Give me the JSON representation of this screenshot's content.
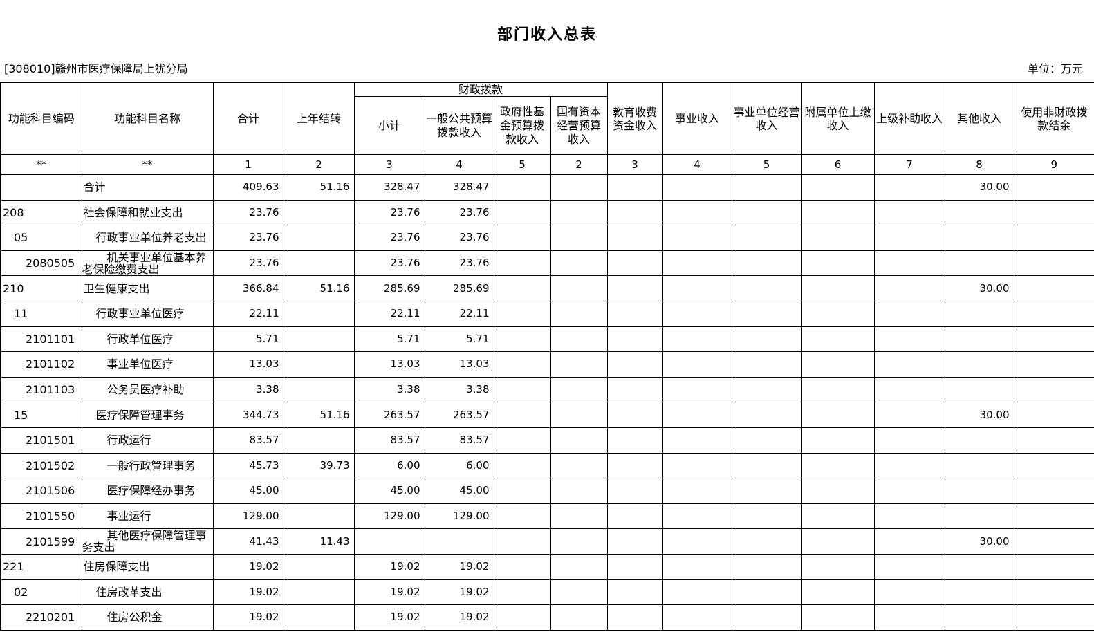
{
  "title": "部门收入总表",
  "org": "[308010]赣州市医疗保障局上犹分局",
  "unit": "单位：万元",
  "table": {
    "header": {
      "code": {
        "label": "功能科目编码",
        "num": "**"
      },
      "name": {
        "label": "功能科目名称",
        "num": "**"
      },
      "total": {
        "label": "合计",
        "num": "1"
      },
      "carryover": {
        "label": "上年结转",
        "num": "2"
      },
      "fiscal_group": "财政拨款",
      "subtotal": {
        "label": "小计",
        "num": "3"
      },
      "general": {
        "label": "一般公共预算\n拨款收入",
        "num": "4"
      },
      "govfund": {
        "label": "政府性基\n金预算拨\n款收入",
        "num": "5"
      },
      "statecap": {
        "label": "国有资本\n经营预算\n收入",
        "num": "2"
      },
      "edufee": {
        "label": "教育收费\n资金收入",
        "num": "3"
      },
      "business": {
        "label": "事业收入",
        "num": "4"
      },
      "bizop": {
        "label": "事业单位经营\n收入",
        "num": "5"
      },
      "affiliate": {
        "label": "附属单位上缴\n收入",
        "num": "6"
      },
      "superior": {
        "label": "上级补助收入",
        "num": "7"
      },
      "other": {
        "label": "其他收入",
        "num": "8"
      },
      "nonfiscal": {
        "label": "使用非财政拨\n款结余",
        "num": "9"
      }
    },
    "value_keys": [
      "total",
      "carryover",
      "subtotal",
      "general",
      "govfund",
      "statecap",
      "edufee",
      "business",
      "bizop",
      "affiliate",
      "superior",
      "other",
      "nonfiscal"
    ],
    "rows": [
      {
        "code": "",
        "code_level": 1,
        "name": "合计",
        "name_level": 1,
        "values": {
          "total": "409.63",
          "carryover": "51.16",
          "subtotal": "328.47",
          "general": "328.47",
          "other": "30.00"
        }
      },
      {
        "code": "208",
        "code_level": 1,
        "name": "社会保障和就业支出",
        "name_level": 1,
        "values": {
          "total": "23.76",
          "subtotal": "23.76",
          "general": "23.76"
        }
      },
      {
        "code": "05",
        "code_level": 2,
        "name": "行政事业单位养老支出",
        "name_level": 2,
        "values": {
          "total": "23.76",
          "subtotal": "23.76",
          "general": "23.76"
        }
      },
      {
        "code": "2080505",
        "code_level": 3,
        "name": "机关事业单位基本养老保险缴费支出",
        "name_level": 3,
        "values": {
          "total": "23.76",
          "subtotal": "23.76",
          "general": "23.76"
        }
      },
      {
        "code": "210",
        "code_level": 1,
        "name": "卫生健康支出",
        "name_level": 1,
        "values": {
          "total": "366.84",
          "carryover": "51.16",
          "subtotal": "285.69",
          "general": "285.69",
          "other": "30.00"
        }
      },
      {
        "code": "11",
        "code_level": 2,
        "name": "行政事业单位医疗",
        "name_level": 2,
        "values": {
          "total": "22.11",
          "subtotal": "22.11",
          "general": "22.11"
        }
      },
      {
        "code": "2101101",
        "code_level": 3,
        "name": "行政单位医疗",
        "name_level": 3,
        "values": {
          "total": "5.71",
          "subtotal": "5.71",
          "general": "5.71"
        }
      },
      {
        "code": "2101102",
        "code_level": 3,
        "name": "事业单位医疗",
        "name_level": 3,
        "values": {
          "total": "13.03",
          "subtotal": "13.03",
          "general": "13.03"
        }
      },
      {
        "code": "2101103",
        "code_level": 3,
        "name": "公务员医疗补助",
        "name_level": 3,
        "values": {
          "total": "3.38",
          "subtotal": "3.38",
          "general": "3.38"
        }
      },
      {
        "code": "15",
        "code_level": 2,
        "name": "医疗保障管理事务",
        "name_level": 2,
        "values": {
          "total": "344.73",
          "carryover": "51.16",
          "subtotal": "263.57",
          "general": "263.57",
          "other": "30.00"
        }
      },
      {
        "code": "2101501",
        "code_level": 3,
        "name": "行政运行",
        "name_level": 3,
        "values": {
          "total": "83.57",
          "subtotal": "83.57",
          "general": "83.57"
        }
      },
      {
        "code": "2101502",
        "code_level": 3,
        "name": "一般行政管理事务",
        "name_level": 3,
        "values": {
          "total": "45.73",
          "carryover": "39.73",
          "subtotal": "6.00",
          "general": "6.00"
        }
      },
      {
        "code": "2101506",
        "code_level": 3,
        "name": "医疗保障经办事务",
        "name_level": 3,
        "values": {
          "total": "45.00",
          "subtotal": "45.00",
          "general": "45.00"
        }
      },
      {
        "code": "2101550",
        "code_level": 3,
        "name": "事业运行",
        "name_level": 3,
        "values": {
          "total": "129.00",
          "subtotal": "129.00",
          "general": "129.00"
        }
      },
      {
        "code": "2101599",
        "code_level": 3,
        "name": "其他医疗保障管理事务支出",
        "name_level": 3,
        "values": {
          "total": "41.43",
          "carryover": "11.43",
          "other": "30.00"
        }
      },
      {
        "code": "221",
        "code_level": 1,
        "name": "住房保障支出",
        "name_level": 1,
        "values": {
          "total": "19.02",
          "subtotal": "19.02",
          "general": "19.02"
        }
      },
      {
        "code": "02",
        "code_level": 2,
        "name": "住房改革支出",
        "name_level": 2,
        "values": {
          "total": "19.02",
          "subtotal": "19.02",
          "general": "19.02"
        }
      },
      {
        "code": "2210201",
        "code_level": 3,
        "name": "住房公积金",
        "name_level": 3,
        "values": {
          "total": "19.02",
          "subtotal": "19.02",
          "general": "19.02"
        }
      }
    ]
  }
}
